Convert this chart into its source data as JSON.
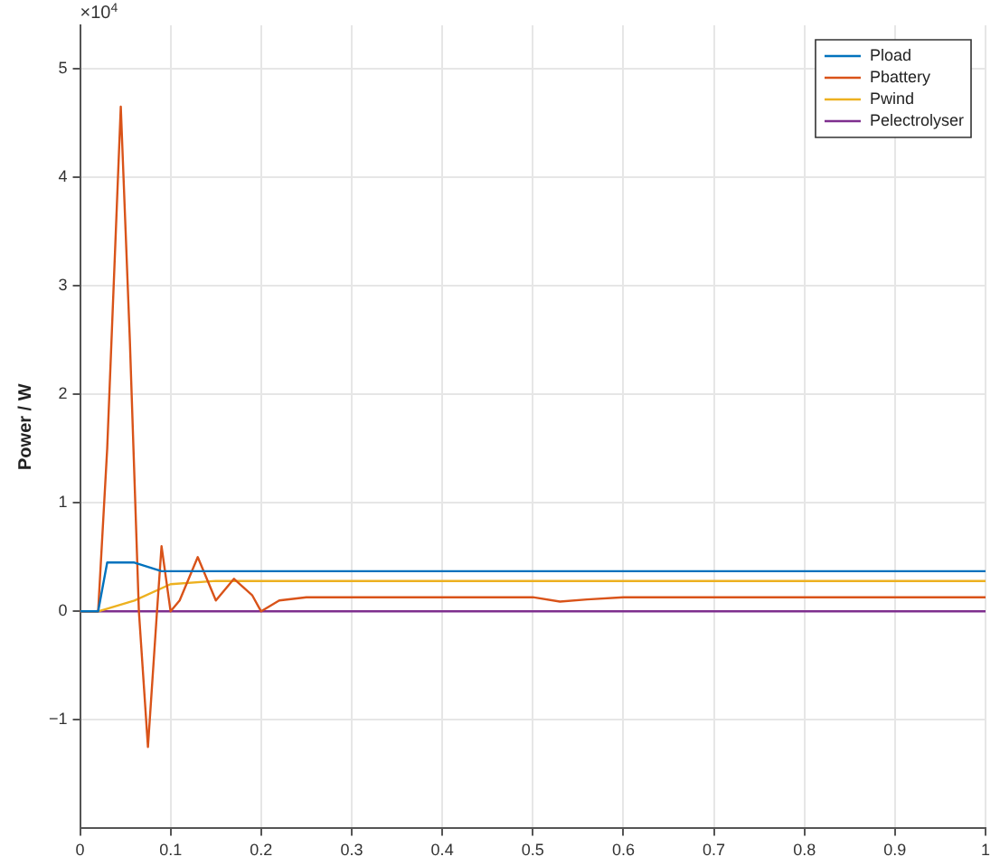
{
  "chart_data": {
    "type": "line",
    "ylabel": "Power / W",
    "annotations": [
      "×10$^{4}$"
    ],
    "xlim": [
      0,
      1
    ],
    "xticks": [
      0,
      0.1,
      0.2,
      0.3,
      0.4,
      0.5,
      0.6,
      0.7,
      0.8,
      0.9,
      1
    ],
    "ylim": [
      -2,
      5.4
    ],
    "yticks": [
      -1,
      0,
      1,
      2,
      3,
      4,
      5
    ],
    "grid": true,
    "legend": "top right",
    "marker": "none",
    "line_style": "solid",
    "series": [
      {
        "name": "Pload",
        "color": "#0072bd",
        "x": [
          0,
          0.02,
          0.03,
          0.06,
          0.09,
          1
        ],
        "values": [
          0,
          0,
          0.45,
          0.45,
          0.37,
          0.37
        ]
      },
      {
        "name": "Pbattery",
        "color": "#d95319",
        "x": [
          0,
          0.02,
          0.03,
          0.045,
          0.055,
          0.065,
          0.075,
          0.085,
          0.09,
          0.1,
          0.11,
          0.13,
          0.15,
          0.17,
          0.19,
          0.2,
          0.22,
          0.25,
          0.5,
          0.53,
          0.56,
          0.6,
          1
        ],
        "values": [
          0,
          0,
          1.5,
          4.65,
          2.5,
          0,
          -1.25,
          0,
          0.6,
          0,
          0.1,
          0.5,
          0.1,
          0.3,
          0.15,
          0,
          0.1,
          0.13,
          0.13,
          0.09,
          0.11,
          0.13,
          0.13
        ]
      },
      {
        "name": "Pwind",
        "color": "#edb120",
        "x": [
          0,
          0.02,
          0.06,
          0.1,
          0.15,
          1
        ],
        "values": [
          0,
          0,
          0.1,
          0.25,
          0.28,
          0.28
        ]
      },
      {
        "name": "Pelectrolyser",
        "color": "#7e2f8e",
        "x": [
          0,
          1
        ],
        "values": [
          0,
          0
        ]
      }
    ]
  }
}
